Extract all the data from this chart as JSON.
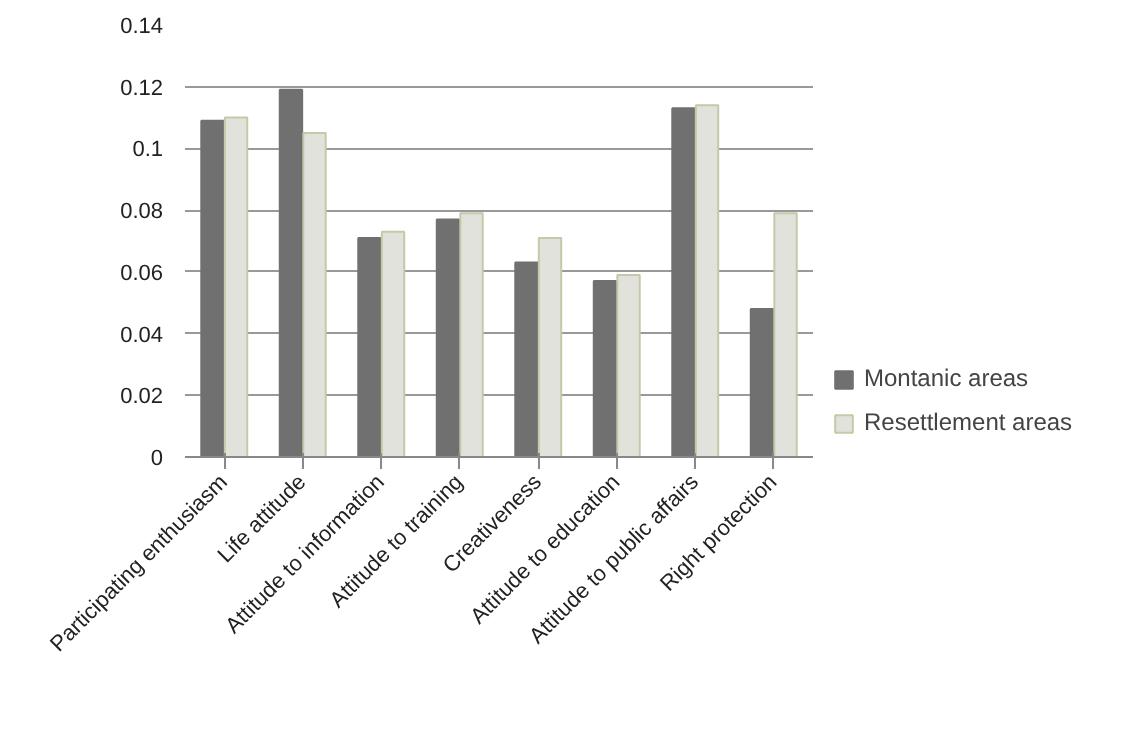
{
  "chart_data": {
    "type": "bar",
    "categories": [
      "Participating enthusiasm",
      "Life attitude",
      "Attitude to information",
      "Attitude to training",
      "Creativeness",
      "Attitude to education",
      "Attitude to public affairs",
      "Right protection"
    ],
    "series": [
      {
        "name": "Montanic areas",
        "color": "#707070",
        "values": [
          0.109,
          0.119,
          0.071,
          0.077,
          0.063,
          0.057,
          0.113,
          0.048
        ]
      },
      {
        "name": "Resettlement areas",
        "color": "#e2e2dc",
        "values": [
          0.11,
          0.105,
          0.073,
          0.079,
          0.071,
          0.059,
          0.114,
          0.079
        ]
      }
    ],
    "ylim": [
      0,
      0.14
    ],
    "yticks": [
      0,
      0.02,
      0.04,
      0.06,
      0.08,
      {
        "value": 0.1,
        "label": "0.1"
      },
      0.12,
      0.14
    ],
    "grid": "y",
    "legend": "right"
  }
}
